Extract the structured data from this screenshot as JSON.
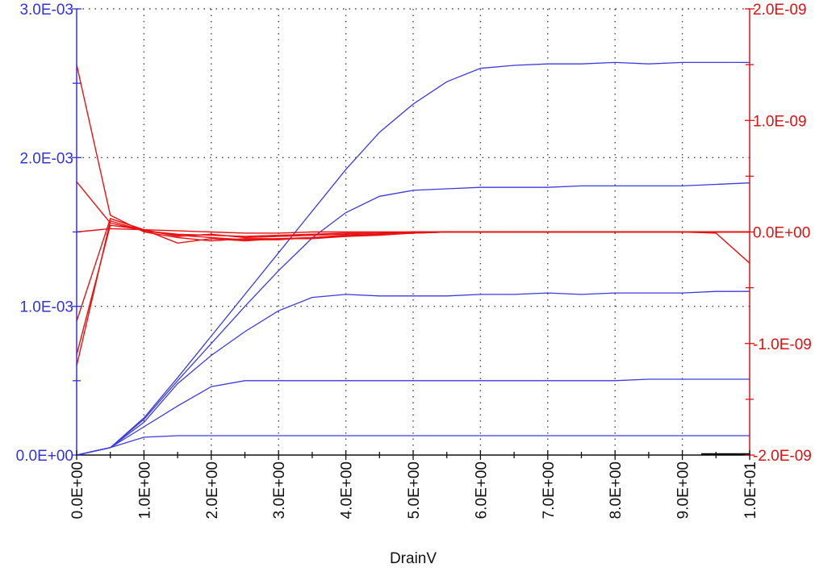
{
  "chart_data": {
    "type": "line",
    "title": "",
    "xlabel": "DrainV",
    "ylabel_left": "",
    "ylabel_right": "",
    "xlim": [
      0,
      10
    ],
    "ylim_left": [
      0,
      0.003
    ],
    "ylim_right": [
      -2e-09,
      2e-09
    ],
    "grid": true,
    "grid_style": "dotted",
    "legend": "none",
    "x_ticks": [
      "0.0E+00",
      "1.0E+00",
      "2.0E+00",
      "3.0E+00",
      "4.0E+00",
      "5.0E+00",
      "6.0E+00",
      "7.0E+00",
      "8.0E+00",
      "9.0E+00",
      "1.0E+01"
    ],
    "y_ticks_left": [
      "0.0E+00",
      "1.0E-03",
      "2.0E-03",
      "3.0E-03"
    ],
    "y_ticks_right": [
      "-2.0E-09",
      "-1.0E-09",
      "0.0E+00",
      "1.0E-09",
      "2.0E-09"
    ],
    "colors": {
      "left_axis": "#3333dd",
      "right_axis": "#e01010",
      "left_series": "#3a3ae0",
      "right_series": "#e81010",
      "grid": "#444444"
    },
    "x": [
      0,
      0.5,
      1,
      1.5,
      2,
      2.5,
      3,
      3.5,
      4,
      4.5,
      5,
      5.5,
      6,
      6.5,
      7,
      7.5,
      8,
      8.5,
      9,
      9.5,
      10
    ],
    "series_left": [
      {
        "values": [
          0,
          5e-05,
          0.00012,
          0.00013,
          0.00013,
          0.00013,
          0.00013,
          0.00013,
          0.00013,
          0.00013,
          0.00013,
          0.00013,
          0.00013,
          0.00013,
          0.00013,
          0.00013,
          0.00013,
          0.00013,
          0.00013,
          0.00013,
          0.00013
        ]
      },
      {
        "values": [
          0,
          5e-05,
          0.00019,
          0.00033,
          0.00046,
          0.0005,
          0.0005,
          0.0005,
          0.0005,
          0.0005,
          0.0005,
          0.0005,
          0.0005,
          0.0005,
          0.0005,
          0.0005,
          0.0005,
          0.00051,
          0.00051,
          0.00051,
          0.00051
        ]
      },
      {
        "values": [
          0,
          5e-05,
          0.00022,
          0.00048,
          0.00067,
          0.00083,
          0.00097,
          0.00106,
          0.00108,
          0.00107,
          0.00107,
          0.00107,
          0.00108,
          0.00108,
          0.00109,
          0.00108,
          0.00109,
          0.00109,
          0.00109,
          0.0011,
          0.0011
        ]
      },
      {
        "values": [
          0,
          5e-05,
          0.00024,
          0.0005,
          0.00075,
          0.001,
          0.00124,
          0.00146,
          0.00163,
          0.00174,
          0.00178,
          0.00179,
          0.0018,
          0.0018,
          0.0018,
          0.00181,
          0.00181,
          0.00181,
          0.00181,
          0.00182,
          0.00183
        ]
      },
      {
        "values": [
          0,
          5e-05,
          0.00025,
          0.00052,
          0.0008,
          0.00108,
          0.00136,
          0.00164,
          0.00192,
          0.00217,
          0.00236,
          0.00251,
          0.0026,
          0.00262,
          0.00263,
          0.00263,
          0.00264,
          0.00263,
          0.00264,
          0.00264,
          0.00264
        ]
      }
    ],
    "series_right": [
      {
        "values": [
          1.5e-09,
          1.5e-10,
          0,
          -5e-11,
          -8e-11,
          -6e-11,
          -6e-11,
          -5e-11,
          -3e-11,
          -2e-11,
          -1e-11,
          0,
          0,
          0,
          0,
          0,
          0,
          0,
          0,
          0,
          0
        ]
      },
      {
        "values": [
          -1.2e-09,
          1e-10,
          1e-11,
          -3e-11,
          -5e-11,
          -7e-11,
          -7e-11,
          -5e-11,
          -4e-11,
          -2e-11,
          -1e-11,
          0,
          0,
          0,
          0,
          0,
          0,
          0,
          0,
          0,
          0
        ]
      },
      {
        "values": [
          -8e-10,
          1.2e-10,
          2e-11,
          -1e-10,
          -6e-11,
          -8e-11,
          -6e-11,
          -6e-11,
          -4e-11,
          -3e-11,
          -1e-11,
          0,
          0,
          0,
          0,
          0,
          0,
          0,
          0,
          0,
          0
        ]
      },
      {
        "values": [
          4.5e-10,
          8e-11,
          1e-11,
          -2e-11,
          -3e-11,
          -4e-11,
          -3e-11,
          -2e-11,
          -1e-11,
          -1e-11,
          0,
          0,
          0,
          0,
          0,
          0,
          0,
          0,
          0,
          -1e-11,
          -2.8e-10
        ]
      },
      {
        "values": [
          -1.1e-09,
          6e-11,
          2e-11,
          -4e-11,
          -2e-11,
          -5e-11,
          -4e-11,
          -3e-11,
          -2e-11,
          -1e-11,
          0,
          0,
          0,
          0,
          0,
          0,
          0,
          0,
          0,
          0,
          0
        ]
      },
      {
        "values": [
          0,
          3e-11,
          2e-11,
          1e-11,
          0,
          -1e-11,
          -1e-11,
          0,
          0,
          0,
          0,
          0,
          0,
          0,
          0,
          0,
          0,
          0,
          0,
          0,
          0
        ]
      }
    ]
  }
}
